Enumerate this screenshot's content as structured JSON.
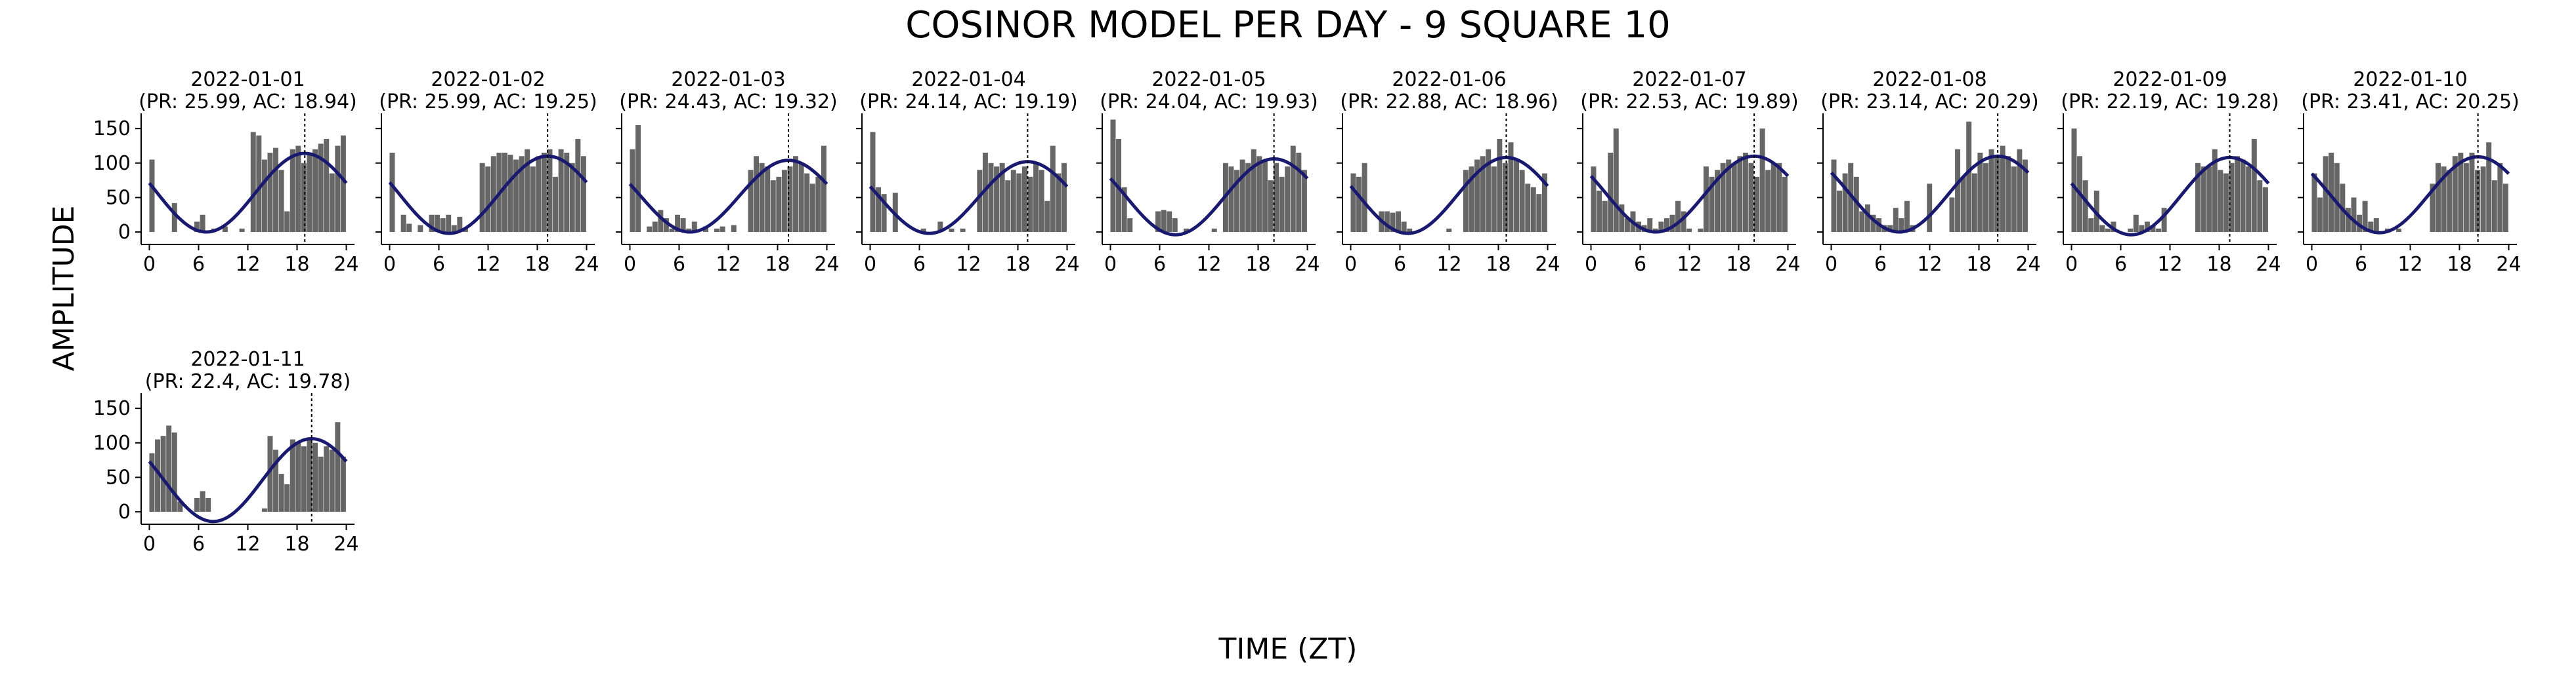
{
  "figure": {
    "title": "COSINOR MODEL PER DAY - 9 SQUARE 10",
    "xlabel": "TIME (ZT)",
    "ylabel": "AMPLITUDE"
  },
  "colors": {
    "bar": "#666666",
    "fit_line": "#191970",
    "acrophase_line": "#000000",
    "axis": "#000000"
  },
  "chart_data": [
    {
      "type": "bar",
      "title": "2022-01-01",
      "subtitle": "(PR: 25.99, AC: 18.94)",
      "mesor": 57,
      "amplitude": 57,
      "acrophase": 18.94,
      "x_ticks": [
        0,
        6,
        12,
        18,
        24
      ],
      "y_ticks": [
        0,
        50,
        100,
        150
      ],
      "xlim": [
        -1,
        25
      ],
      "ylim": [
        -18,
        172
      ],
      "values": [
        105,
        0,
        0,
        0,
        42,
        0,
        0,
        0,
        15,
        25,
        0,
        5,
        0,
        8,
        0,
        0,
        5,
        0,
        145,
        140,
        105,
        115,
        122,
        90,
        30,
        120,
        125,
        100,
        115,
        120,
        128,
        135,
        85,
        125,
        140
      ]
    },
    {
      "type": "bar",
      "title": "2022-01-02",
      "subtitle": "(PR: 25.99, AC: 19.25)",
      "mesor": 54,
      "amplitude": 56,
      "acrophase": 19.25,
      "x_ticks": [
        0,
        6,
        12,
        18,
        24
      ],
      "y_ticks": [
        0,
        50,
        100,
        150
      ],
      "xlim": [
        -1,
        25
      ],
      "ylim": [
        -18,
        172
      ],
      "values": [
        115,
        0,
        25,
        12,
        0,
        10,
        0,
        25,
        25,
        20,
        25,
        10,
        22,
        5,
        0,
        0,
        100,
        95,
        110,
        115,
        115,
        112,
        105,
        110,
        120,
        95,
        110,
        115,
        120,
        80,
        120,
        115,
        100,
        135,
        110
      ]
    },
    {
      "type": "bar",
      "title": "2022-01-03",
      "subtitle": "(PR: 24.43, AC: 19.32)",
      "mesor": 52,
      "amplitude": 52,
      "acrophase": 19.32,
      "x_ticks": [
        0,
        6,
        12,
        18,
        24
      ],
      "y_ticks": [
        0,
        50,
        100,
        150
      ],
      "xlim": [
        -1,
        25
      ],
      "ylim": [
        -18,
        172
      ],
      "values": [
        120,
        155,
        0,
        8,
        15,
        32,
        20,
        5,
        25,
        20,
        5,
        15,
        0,
        8,
        0,
        5,
        8,
        0,
        10,
        0,
        0,
        90,
        110,
        100,
        95,
        75,
        80,
        90,
        95,
        110,
        100,
        85,
        70,
        80,
        125
      ]
    },
    {
      "type": "bar",
      "title": "2022-01-04",
      "subtitle": "(PR: 24.14, AC: 19.19)",
      "mesor": 50,
      "amplitude": 52,
      "acrophase": 19.19,
      "x_ticks": [
        0,
        6,
        12,
        18,
        24
      ],
      "y_ticks": [
        0,
        50,
        100,
        150
      ],
      "xlim": [
        -1,
        25
      ],
      "ylim": [
        -18,
        172
      ],
      "values": [
        145,
        65,
        55,
        0,
        57,
        0,
        0,
        0,
        0,
        5,
        0,
        0,
        15,
        0,
        5,
        0,
        5,
        0,
        0,
        90,
        115,
        100,
        95,
        100,
        75,
        90,
        85,
        95,
        80,
        100,
        90,
        45,
        125,
        85,
        100
      ]
    },
    {
      "type": "bar",
      "title": "2022-01-05",
      "subtitle": "(PR: 24.04, AC: 19.93)",
      "mesor": 51,
      "amplitude": 55,
      "acrophase": 19.93,
      "x_ticks": [
        0,
        6,
        12,
        18,
        24
      ],
      "y_ticks": [
        0,
        50,
        100,
        150
      ],
      "xlim": [
        -1,
        25
      ],
      "ylim": [
        -18,
        172
      ],
      "values": [
        163,
        135,
        65,
        20,
        0,
        0,
        0,
        0,
        30,
        32,
        30,
        20,
        0,
        5,
        0,
        0,
        0,
        0,
        5,
        0,
        100,
        95,
        90,
        105,
        100,
        120,
        110,
        105,
        75,
        100,
        80,
        95,
        125,
        115,
        90
      ]
    },
    {
      "type": "bar",
      "title": "2022-01-06",
      "subtitle": "(PR: 22.88, AC: 18.96)",
      "mesor": 53,
      "amplitude": 55,
      "acrophase": 18.96,
      "x_ticks": [
        0,
        6,
        12,
        18,
        24
      ],
      "y_ticks": [
        0,
        50,
        100,
        150
      ],
      "xlim": [
        -1,
        25
      ],
      "ylim": [
        -18,
        172
      ],
      "values": [
        85,
        80,
        100,
        0,
        0,
        30,
        30,
        28,
        30,
        15,
        5,
        0,
        0,
        0,
        0,
        0,
        0,
        5,
        0,
        0,
        90,
        95,
        105,
        110,
        120,
        95,
        135,
        100,
        130,
        105,
        90,
        70,
        65,
        55,
        85
      ]
    },
    {
      "type": "bar",
      "title": "2022-01-07",
      "subtitle": "(PR: 22.53, AC: 19.89)",
      "mesor": 55,
      "amplitude": 55,
      "acrophase": 19.89,
      "x_ticks": [
        0,
        6,
        12,
        18,
        24
      ],
      "y_ticks": [
        0,
        50,
        100,
        150
      ],
      "xlim": [
        -1,
        25
      ],
      "ylim": [
        -18,
        172
      ],
      "values": [
        95,
        60,
        45,
        115,
        150,
        40,
        20,
        30,
        15,
        10,
        20,
        5,
        15,
        20,
        25,
        45,
        30,
        5,
        0,
        5,
        95,
        80,
        90,
        100,
        105,
        100,
        110,
        115,
        100,
        80,
        150,
        90,
        100,
        100,
        80
      ]
    },
    {
      "type": "bar",
      "title": "2022-01-08",
      "subtitle": "(PR: 23.14, AC: 20.29)",
      "mesor": 55,
      "amplitude": 55,
      "acrophase": 20.29,
      "x_ticks": [
        0,
        6,
        12,
        18,
        24
      ],
      "y_ticks": [
        0,
        50,
        100,
        150
      ],
      "xlim": [
        -1,
        25
      ],
      "ylim": [
        -18,
        172
      ],
      "values": [
        105,
        60,
        85,
        100,
        80,
        30,
        40,
        25,
        20,
        10,
        10,
        35,
        20,
        45,
        10,
        0,
        0,
        70,
        0,
        0,
        0,
        50,
        120,
        80,
        160,
        85,
        115,
        100,
        120,
        110,
        125,
        110,
        95,
        120,
        105
      ]
    },
    {
      "type": "bar",
      "title": "2022-01-09",
      "subtitle": "(PR: 22.19, AC: 19.28)",
      "mesor": 52,
      "amplitude": 56,
      "acrophase": 19.28,
      "x_ticks": [
        0,
        6,
        12,
        18,
        24
      ],
      "y_ticks": [
        0,
        50,
        100,
        150
      ],
      "xlim": [
        -1,
        25
      ],
      "ylim": [
        -18,
        172
      ],
      "values": [
        150,
        110,
        75,
        20,
        60,
        10,
        5,
        15,
        0,
        0,
        5,
        25,
        10,
        15,
        10,
        5,
        35,
        0,
        0,
        0,
        0,
        0,
        100,
        95,
        95,
        120,
        90,
        85,
        100,
        110,
        105,
        95,
        135,
        75,
        65
      ]
    },
    {
      "type": "bar",
      "title": "2022-01-10",
      "subtitle": "(PR: 23.41, AC: 20.25)",
      "mesor": 54,
      "amplitude": 55,
      "acrophase": 20.25,
      "x_ticks": [
        0,
        6,
        12,
        18,
        24
      ],
      "y_ticks": [
        0,
        50,
        100,
        150
      ],
      "xlim": [
        -1,
        25
      ],
      "ylim": [
        -18,
        172
      ],
      "values": [
        85,
        50,
        110,
        115,
        100,
        70,
        35,
        50,
        25,
        45,
        15,
        20,
        0,
        5,
        0,
        5,
        0,
        0,
        0,
        0,
        0,
        70,
        100,
        95,
        90,
        110,
        115,
        100,
        115,
        90,
        95,
        130,
        75,
        100,
        70
      ]
    },
    {
      "type": "bar",
      "title": "2022-01-11",
      "subtitle": "(PR: 22.4, AC: 19.78)",
      "mesor": 46,
      "amplitude": 60,
      "acrophase": 19.78,
      "x_ticks": [
        0,
        6,
        12,
        18,
        24
      ],
      "y_ticks": [
        0,
        50,
        100,
        150
      ],
      "xlim": [
        -1,
        25
      ],
      "ylim": [
        -18,
        172
      ],
      "values": [
        85,
        105,
        110,
        125,
        115,
        15,
        0,
        0,
        20,
        30,
        20,
        0,
        0,
        0,
        0,
        0,
        0,
        0,
        0,
        0,
        5,
        110,
        90,
        55,
        40,
        105,
        100,
        95,
        105,
        100,
        80,
        95,
        90,
        130,
        80
      ]
    }
  ]
}
